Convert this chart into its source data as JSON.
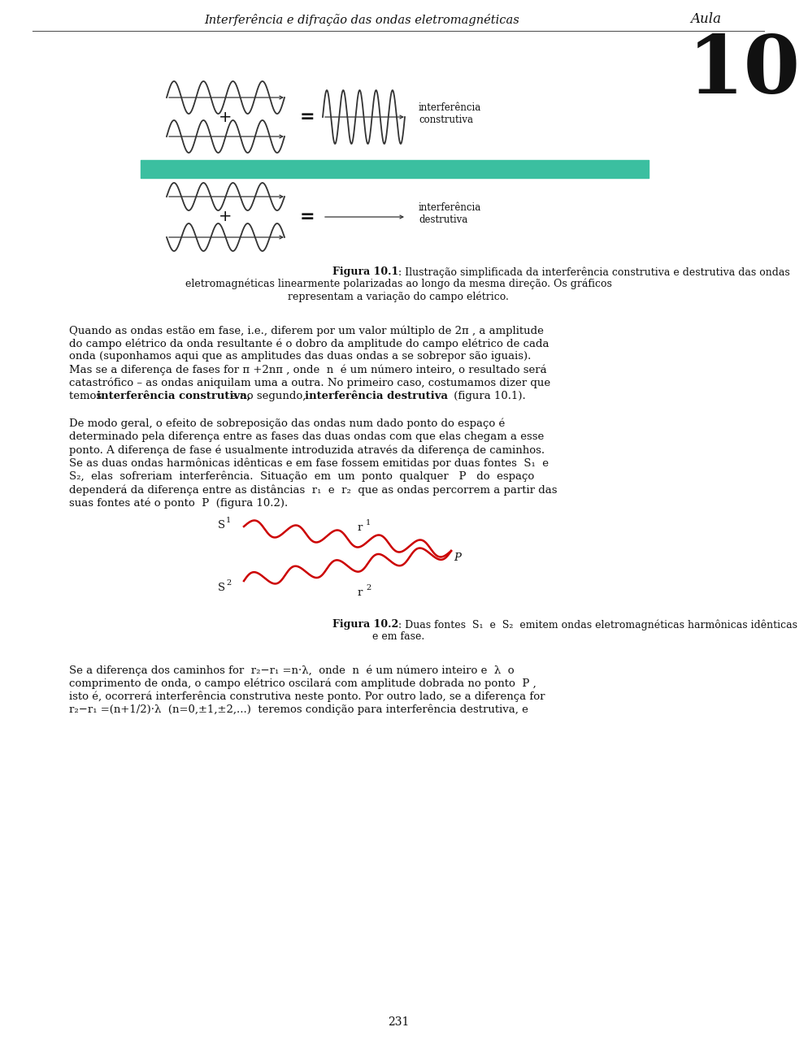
{
  "title_text": "Interferência e difração das ondas eletromagnéticas",
  "aula_text": "Aula",
  "aula_number": "10",
  "teal_bar_color": "#3BBFA0",
  "wave_color": "#333333",
  "red_wave_color": "#CC0000",
  "background_color": "#ffffff",
  "text_color": "#111111",
  "page_number": "231",
  "fig1_cap_bold": "Figura 10.1",
  "fig1_cap_line1": ": Ilustração simplificada da interferência construtiva e destrutiva das ondas",
  "fig1_cap_line2": "eletromagnéticas linearmente polarizadas ao longo da mesma direção. Os gráficos",
  "fig1_cap_line3": "representam a variação do campo elétrico.",
  "label_construtiva": "interferência\nconstrutiva",
  "label_destrutiva": "interferência\ndestrutiva",
  "p1_lines": [
    "Quando as ondas estão em fase, i.e., diferem por um valor múltiplo de 2π , a amplitude",
    "do campo elétrico da onda resultante é o dobro da amplitude do campo elétrico de cada",
    "onda (suponhamos aqui que as amplitudes das duas ondas a se sobrepor são iguais).",
    "Mas se a diferença de fases for π +2nπ , onde  n  é um número inteiro, o resultado será",
    "catastrófico – as ondas aniquilam uma a outra. No primeiro caso, costumamos dizer que"
  ],
  "p1_last_plain1": "temos ",
  "p1_last_bold1": "interferência construtiva,",
  "p1_last_plain2": " e no segundo, ",
  "p1_last_bold2": "interferência destrutiva",
  "p1_last_plain3": " (figura 10.1).",
  "p2_lines": [
    "De modo geral, o efeito de sobreposição das ondas num dado ponto do espaço é",
    "determinado pela diferença entre as fases das duas ondas com que elas chegam a esse",
    "ponto. A diferença de fase é usualmente introduzida através da diferença de caminhos.",
    "Se as duas ondas harmônicas idênticas e em fase fossem emitidas por duas fontes  S₁  e",
    "S₂,  elas  sofreriam  interferência.  Situação  em  um  ponto  qualquer   P   do  espaço",
    "dependerá da diferença entre as distâncias  r₁  e  r₂  que as ondas percorrem a partir das",
    "suas fontes até o ponto  P  (figura 10.2)."
  ],
  "fig2_cap_bold": "Figura 10.2",
  "fig2_cap_line1": ": Duas fontes  S₁  e  S₂  emitem ondas eletromagnéticas harmônicas idênticas",
  "fig2_cap_line2": "e em fase.",
  "p3_lines": [
    "Se a diferença dos caminhos for  r₂−r₁ =n·λ,  onde  n  é um número inteiro e  λ  o",
    "comprimento de onda, o campo elétrico oscilará com amplitude dobrada no ponto  P ,",
    "isto é, ocorrerá interferência construtiva neste ponto. Por outro lado, se a diferença for",
    "r₂−r₁ =(n+1/2)·λ  (n=0,±1,±2,...)  teremos condição para interferência destrutiva, e"
  ]
}
